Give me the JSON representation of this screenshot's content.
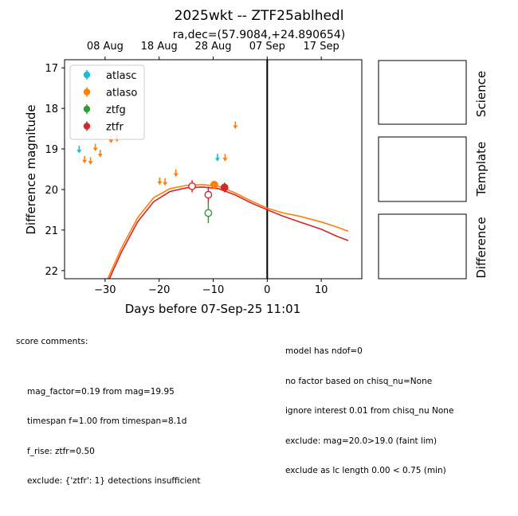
{
  "chart_data": {
    "type": "scatter",
    "title": "2025wkt -- ZTF25ablhedl",
    "subtitle": "ra,dec=(57.9084,+24.890654)",
    "xlabel": "Days before 07-Sep-25 11:01",
    "ylabel": "Difference magnitude",
    "xlim": [
      -37.5,
      17.5
    ],
    "ylim": [
      22.2,
      16.8
    ],
    "y_inverted": true,
    "x_ticks": [
      -30,
      -20,
      -10,
      0,
      10
    ],
    "x_tick_labels": [
      "−30",
      "−20",
      "−10",
      "0",
      "10"
    ],
    "y_ticks": [
      17,
      18,
      19,
      20,
      21,
      22
    ],
    "top_axis_ticks": [
      {
        "x": -30,
        "label": "08 Aug"
      },
      {
        "x": -20,
        "label": "18 Aug"
      },
      {
        "x": -10,
        "label": "28 Aug"
      },
      {
        "x": 0,
        "label": "07 Sep"
      },
      {
        "x": 10,
        "label": "17 Sep"
      }
    ],
    "vertical_line_x": 0,
    "legend_position": "upper-left",
    "series": [
      {
        "name": "atlasc",
        "color": "#17becf",
        "upper_limits": [
          {
            "x": -34.8,
            "y": 19.0
          },
          {
            "x": -9.2,
            "y": 19.2
          }
        ],
        "detections": []
      },
      {
        "name": "atlaso",
        "color": "#ff7f0e",
        "upper_limits": [
          {
            "x": -33.8,
            "y": 19.25
          },
          {
            "x": -32.7,
            "y": 19.28
          },
          {
            "x": -31.8,
            "y": 18.95
          },
          {
            "x": -30.9,
            "y": 19.1
          },
          {
            "x": -28.9,
            "y": 18.75
          },
          {
            "x": -27.8,
            "y": 18.72
          },
          {
            "x": -19.9,
            "y": 19.78
          },
          {
            "x": -18.9,
            "y": 19.8
          },
          {
            "x": -16.9,
            "y": 19.58
          },
          {
            "x": -7.8,
            "y": 19.2
          },
          {
            "x": -5.9,
            "y": 18.4
          }
        ],
        "detections": [
          {
            "x": -9.8,
            "y": 19.88,
            "err": 0.08,
            "filled": true
          }
        ]
      },
      {
        "name": "ztfg",
        "color": "#2ca02c",
        "upper_limits": [],
        "detections": [
          {
            "x": -10.9,
            "y": 20.58,
            "err": 0.25,
            "filled": false
          }
        ]
      },
      {
        "name": "ztfr",
        "color": "#d62728",
        "upper_limits": [],
        "detections": [
          {
            "x": -13.9,
            "y": 19.92,
            "err": 0.15,
            "filled": false
          },
          {
            "x": -10.9,
            "y": 20.13,
            "err": 0.2,
            "filled": false
          },
          {
            "x": -7.9,
            "y": 19.95,
            "err": 0.12,
            "filled": true
          }
        ]
      }
    ],
    "model_curves": [
      {
        "name": "model-orange",
        "color": "#ff7f0e",
        "points": [
          [
            -29.5,
            22.2
          ],
          [
            -27,
            21.45
          ],
          [
            -24,
            20.7
          ],
          [
            -21,
            20.2
          ],
          [
            -18,
            19.98
          ],
          [
            -15,
            19.9
          ],
          [
            -12,
            19.88
          ],
          [
            -9,
            19.92
          ],
          [
            -6,
            20.08
          ],
          [
            -3,
            20.28
          ],
          [
            0,
            20.46
          ],
          [
            3,
            20.58
          ],
          [
            6,
            20.66
          ],
          [
            10,
            20.8
          ],
          [
            13,
            20.93
          ],
          [
            15,
            21.03
          ]
        ]
      },
      {
        "name": "model-red",
        "color": "#d62728",
        "points": [
          [
            -29.2,
            22.2
          ],
          [
            -27,
            21.55
          ],
          [
            -24,
            20.8
          ],
          [
            -21,
            20.3
          ],
          [
            -18,
            20.05
          ],
          [
            -15,
            19.96
          ],
          [
            -12,
            19.94
          ],
          [
            -9,
            19.98
          ],
          [
            -6,
            20.13
          ],
          [
            -3,
            20.33
          ],
          [
            0,
            20.5
          ],
          [
            3,
            20.66
          ],
          [
            6,
            20.8
          ],
          [
            10,
            20.98
          ],
          [
            13,
            21.16
          ],
          [
            15,
            21.26
          ]
        ]
      }
    ],
    "side_panels": [
      "Science",
      "Template",
      "Difference"
    ]
  },
  "comments": {
    "left_header": "score comments:",
    "left_lines": [
      "mag_factor=0.19 from mag=19.95",
      "timespan f=1.00 from timespan=8.1d",
      "f_rise: ztfr=0.50",
      "exclude: {'ztfr': 1} detections insufficient"
    ],
    "right_lines": [
      "model has ndof=0",
      "no factor based on chisq_nu=None",
      "ignore interest 0.01 from chisq_nu None",
      "exclude: mag=20.0>19.0 (faint lim)",
      "exclude as lc length 0.00 < 0.75 (min)"
    ]
  }
}
